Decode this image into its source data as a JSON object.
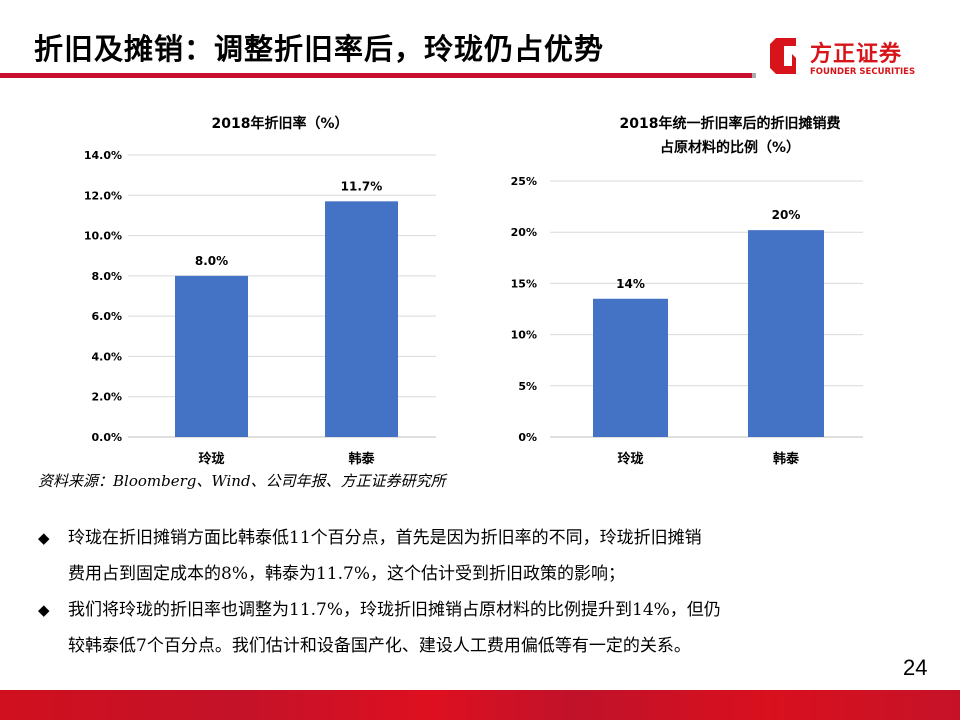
{
  "header": {
    "title": "折旧及摊销：调整折旧率后，玲珑仍占优势",
    "logo_cn": "方正证券",
    "logo_en": "FOUNDER SECURITIES"
  },
  "chart_data": [
    {
      "type": "bar",
      "title": "2018年折旧率（%）",
      "categories": [
        "玲珑",
        "韩泰"
      ],
      "values": [
        8.0,
        11.7
      ],
      "data_labels": [
        "8.0%",
        "11.7%"
      ],
      "ylim": [
        0,
        14
      ],
      "yticks": [
        0,
        2,
        4,
        6,
        8,
        10,
        12,
        14
      ],
      "ytick_labels": [
        "0.0%",
        "2.0%",
        "4.0%",
        "6.0%",
        "8.0%",
        "10.0%",
        "12.0%",
        "14.0%"
      ],
      "grid": true,
      "bar_color": "#4472c4"
    },
    {
      "type": "bar",
      "title": [
        "2018年统一折旧率后的折旧摊销费",
        "占原材料的比例（%）"
      ],
      "categories": [
        "玲珑",
        "韩泰"
      ],
      "values": [
        13.5,
        20.2
      ],
      "data_labels": [
        "14%",
        "20%"
      ],
      "ylim": [
        0,
        25
      ],
      "yticks": [
        0,
        5,
        10,
        15,
        20,
        25
      ],
      "ytick_labels": [
        "0%",
        "5%",
        "10%",
        "15%",
        "20%",
        "25%"
      ],
      "grid": true,
      "bar_color": "#4472c4"
    }
  ],
  "source": "资料来源：Bloomberg、Wind、公司年报、方正证券研究所",
  "bullets": [
    [
      "玲珑在折旧摊销方面比韩泰低11个百分点，首先是因为折旧率的不同，玲珑折旧摊销",
      "费用占到固定成本的8%，韩泰为11.7%，这个估计受到折旧政策的影响；"
    ],
    [
      "我们将玲珑的折旧率也调整为11.7%，玲珑折旧摊销占原材料的比例提升到14%，但仍",
      "较韩泰低7个百分点。我们估计和设备国产化、建设人工费用偏低等有一定的关系。"
    ]
  ],
  "bullet_symbol": "◆",
  "page_number": "24"
}
